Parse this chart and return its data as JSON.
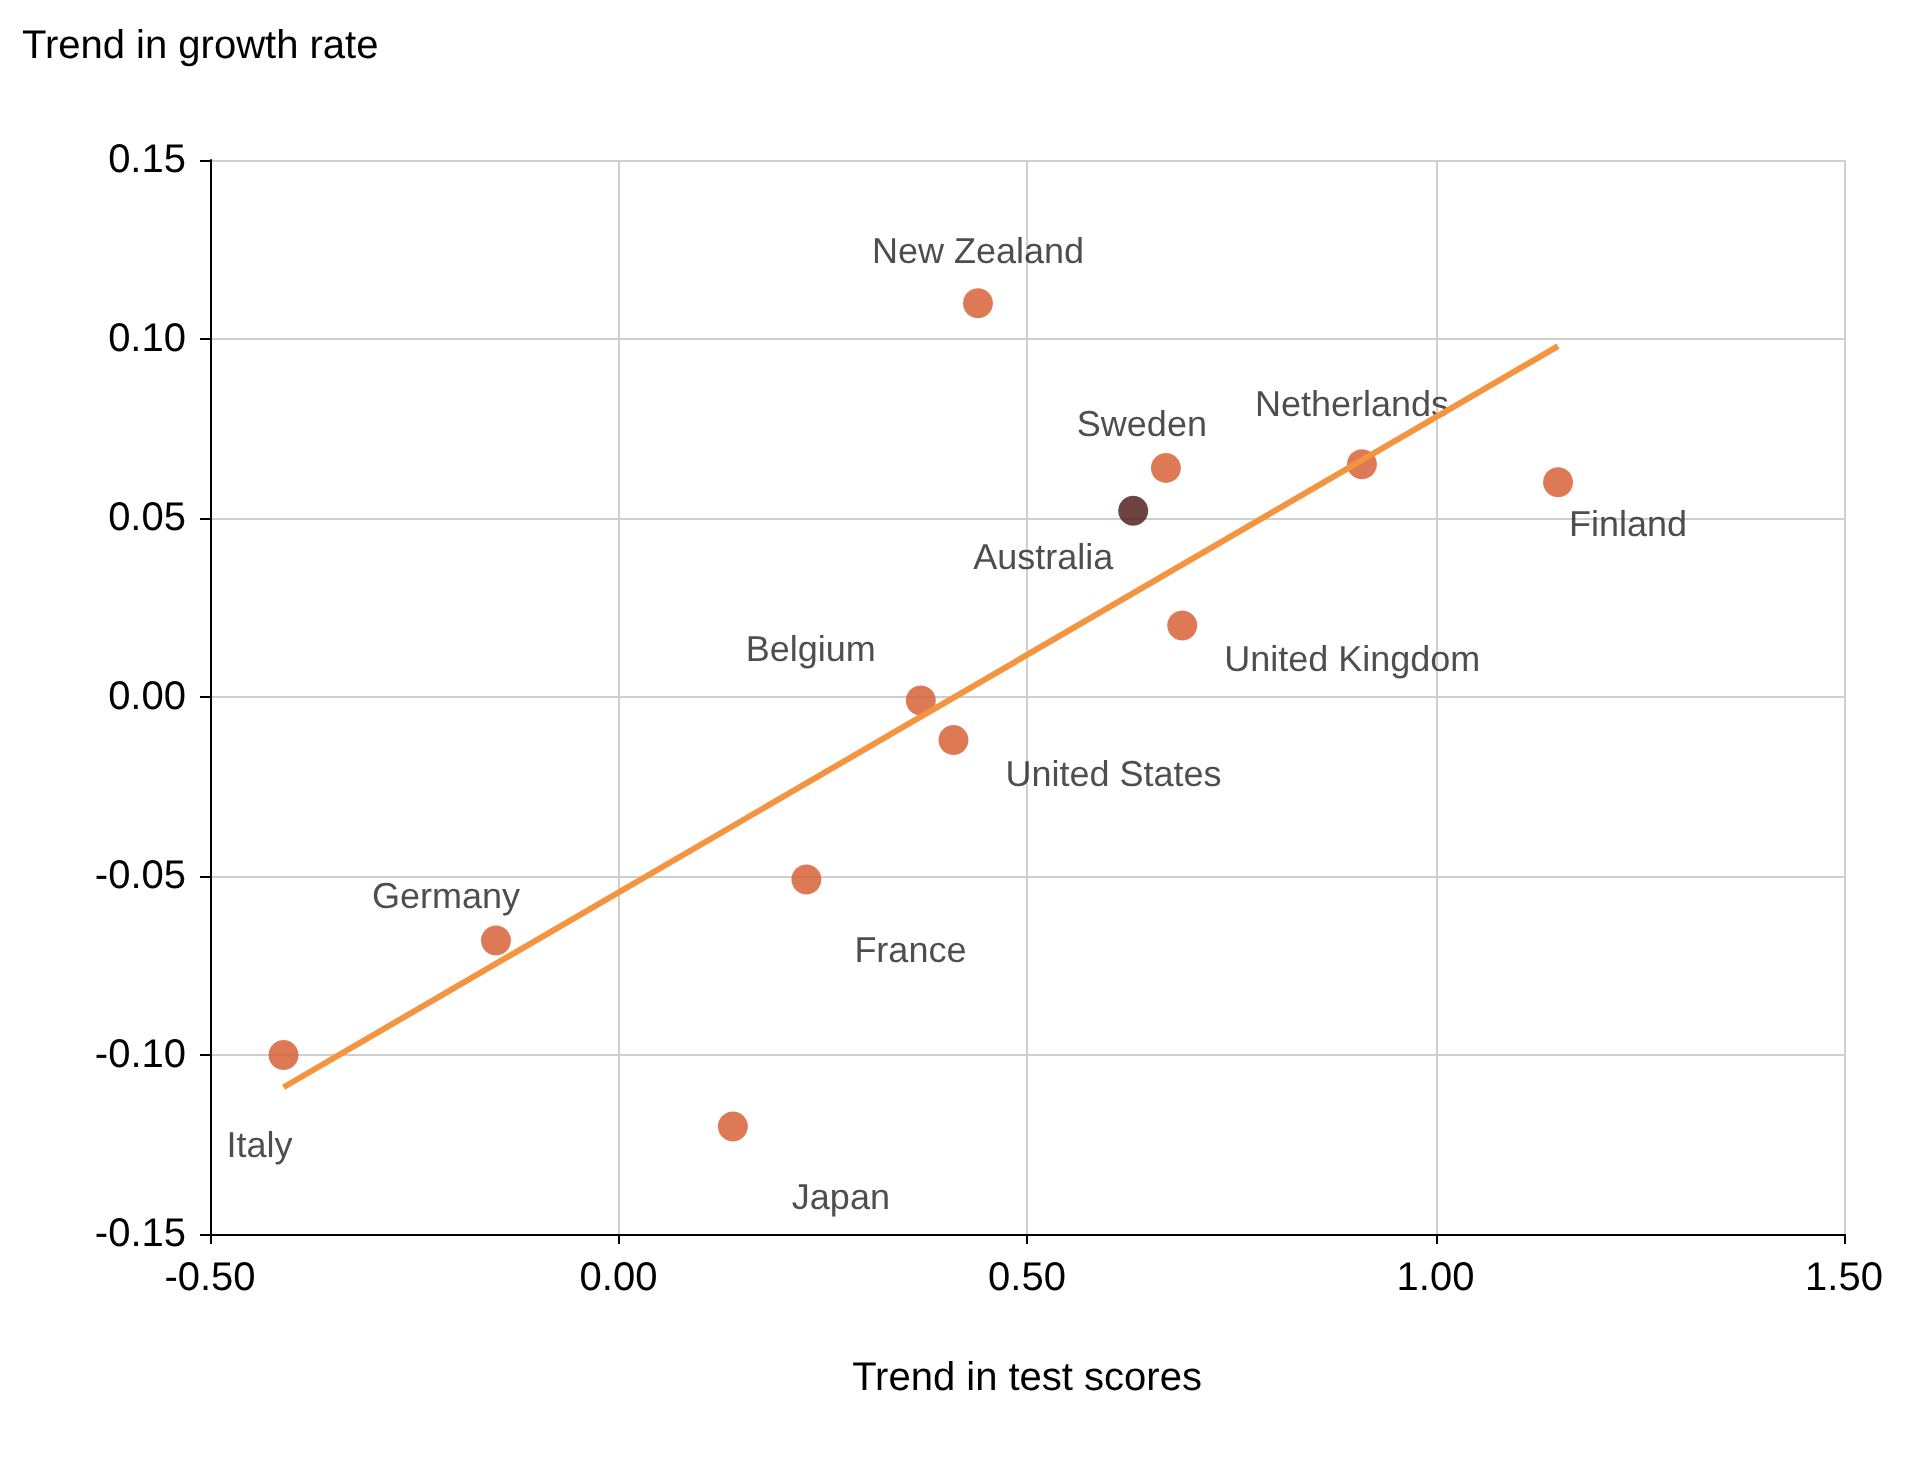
{
  "chart_data": {
    "type": "scatter",
    "xlabel": "Trend in test scores",
    "ylabel": "Trend in growth rate",
    "xlim": [
      -0.5,
      1.5
    ],
    "xticks": [
      {
        "value": -0.5,
        "label": "-0.50"
      },
      {
        "value": 0,
        "label": "0.00"
      },
      {
        "value": 0.5,
        "label": "0.50"
      },
      {
        "value": 1,
        "label": "1.00"
      },
      {
        "value": 1.5,
        "label": "1.50"
      }
    ],
    "ylim": [
      -0.15,
      0.15
    ],
    "yticks": [
      {
        "value": -0.15,
        "label": "-0.15"
      },
      {
        "value": -0.1,
        "label": "-0.10"
      },
      {
        "value": -0.05,
        "label": "-0.05"
      },
      {
        "value": 0,
        "label": "0.00"
      },
      {
        "value": 0.05,
        "label": "0.05"
      },
      {
        "value": 0.1,
        "label": "0.10"
      },
      {
        "value": 0.15,
        "label": "0.15"
      }
    ],
    "grid": true,
    "legend": false,
    "marker": "circle",
    "series": [
      {
        "name": "New Zealand",
        "color": "#d4582b",
        "x": [
          0.44
        ],
        "values": [
          0.11
        ]
      },
      {
        "name": "Sweden",
        "color": "#d4582b",
        "x": [
          0.67
        ],
        "values": [
          0.064
        ]
      },
      {
        "name": "Australia",
        "color": "#4a1414",
        "x": [
          0.63
        ],
        "values": [
          0.052
        ]
      },
      {
        "name": "Netherlands",
        "color": "#d4582b",
        "x": [
          0.91
        ],
        "values": [
          0.065
        ]
      },
      {
        "name": "Finland",
        "color": "#d4582b",
        "x": [
          1.15
        ],
        "values": [
          0.06
        ]
      },
      {
        "name": "United Kingdom",
        "color": "#d4582b",
        "x": [
          0.69
        ],
        "values": [
          0.02
        ]
      },
      {
        "name": "Belgium",
        "color": "#d4582b",
        "x": [
          0.37
        ],
        "values": [
          -0.001
        ]
      },
      {
        "name": "United States",
        "color": "#d4582b",
        "x": [
          0.41
        ],
        "values": [
          -0.012
        ]
      },
      {
        "name": "France",
        "color": "#d4582b",
        "x": [
          0.23
        ],
        "values": [
          -0.051
        ]
      },
      {
        "name": "Germany",
        "color": "#d4582b",
        "x": [
          -0.15
        ],
        "values": [
          -0.068
        ]
      },
      {
        "name": "Italy",
        "color": "#d4582b",
        "x": [
          -0.41
        ],
        "values": [
          -0.1
        ]
      },
      {
        "name": "Japan",
        "color": "#d4582b",
        "x": [
          0.14
        ],
        "values": [
          -0.12
        ]
      },
      {
        "type": "line",
        "color": "#f39441",
        "marker": "none",
        "x": [
          -0.41,
          1.15
        ],
        "values": [
          -0.109,
          0.098
        ]
      }
    ]
  }
}
